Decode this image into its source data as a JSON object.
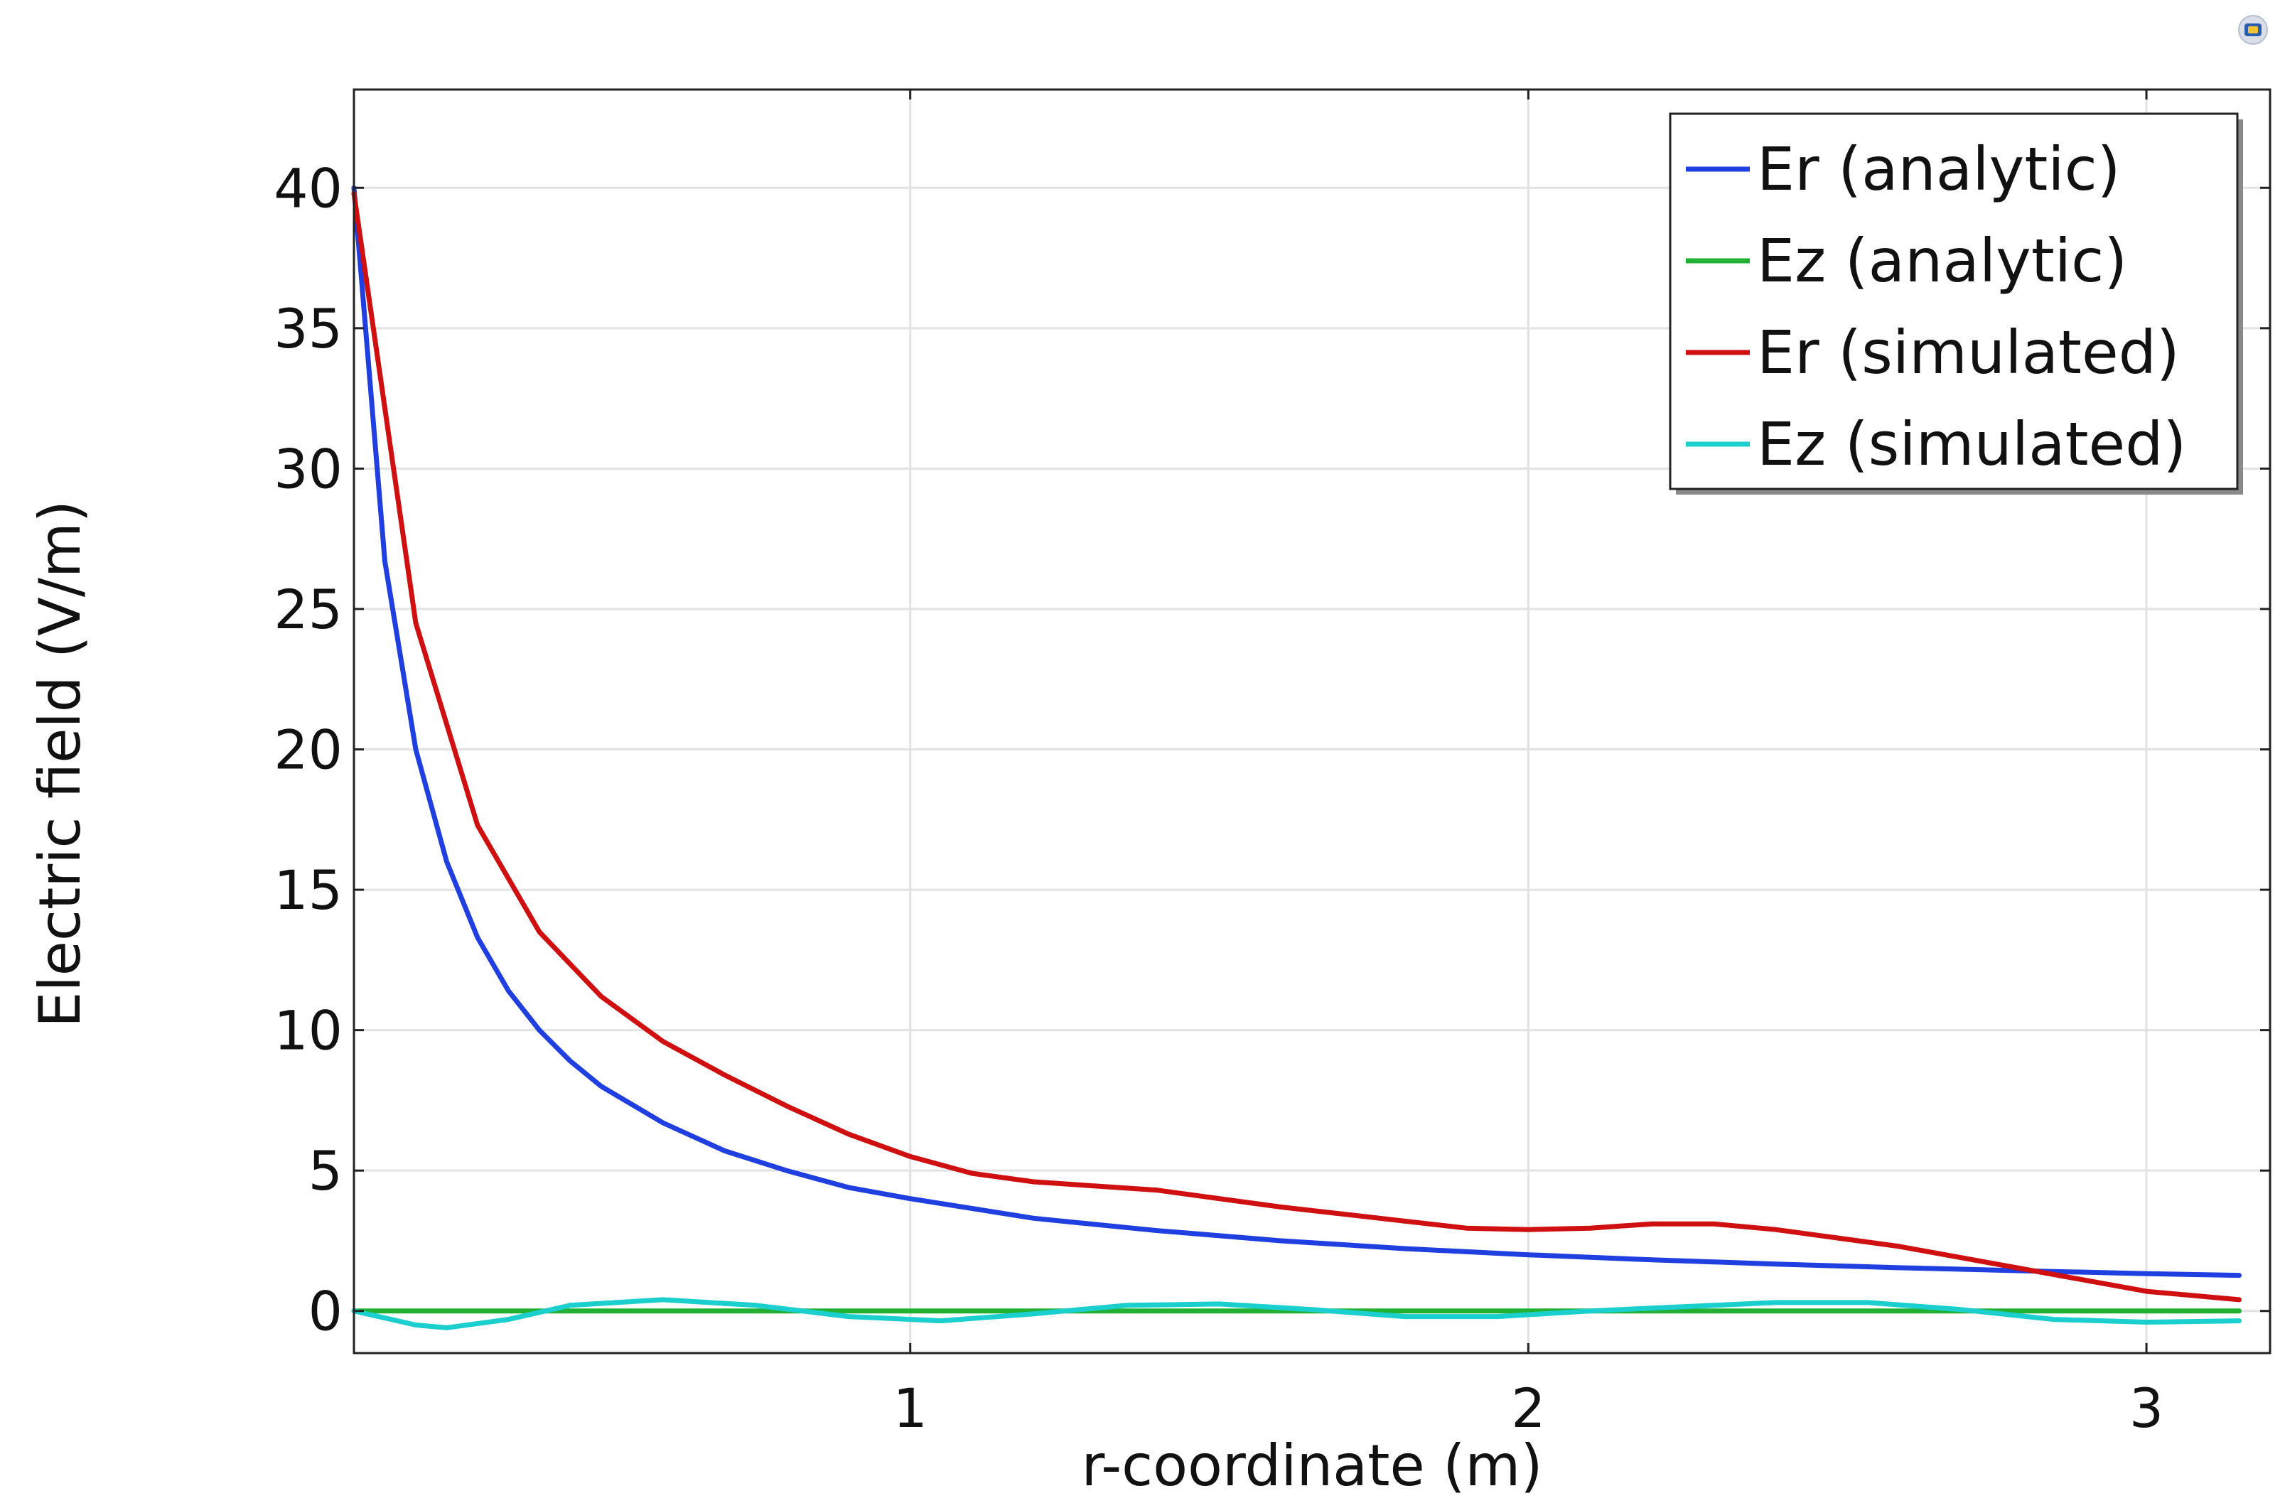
{
  "chart_data": {
    "type": "line",
    "title": "",
    "xlabel": "r-coordinate (m)",
    "ylabel": "Electric field (V/m)",
    "xlim": [
      0.1,
      3.2
    ],
    "ylim": [
      -1.5,
      43.5
    ],
    "xticks": [
      1,
      2,
      3
    ],
    "yticks": [
      0,
      5,
      10,
      15,
      20,
      25,
      30,
      35,
      40
    ],
    "grid": true,
    "legend_position": "top-right",
    "series": [
      {
        "name": "Er (analytic)",
        "color": "#1f3fe0",
        "x": [
          0.1,
          0.15,
          0.2,
          0.25,
          0.3,
          0.35,
          0.4,
          0.45,
          0.5,
          0.6,
          0.7,
          0.8,
          0.9,
          1.0,
          1.2,
          1.4,
          1.6,
          1.8,
          2.0,
          2.2,
          2.4,
          2.6,
          2.8,
          3.0,
          3.15
        ],
        "y": [
          40,
          26.7,
          20,
          16,
          13.3,
          11.4,
          10,
          8.9,
          8,
          6.7,
          5.7,
          5,
          4.4,
          4,
          3.3,
          2.86,
          2.5,
          2.22,
          2,
          1.82,
          1.67,
          1.54,
          1.43,
          1.33,
          1.27
        ]
      },
      {
        "name": "Ez (analytic)",
        "color": "#22b033",
        "x": [
          0.1,
          3.15
        ],
        "y": [
          0,
          0
        ]
      },
      {
        "name": "Er (simulated)",
        "color": "#d01010",
        "x": [
          0.1,
          0.2,
          0.3,
          0.4,
          0.5,
          0.6,
          0.7,
          0.8,
          0.9,
          1.0,
          1.1,
          1.2,
          1.4,
          1.6,
          1.8,
          1.9,
          2.0,
          2.1,
          2.2,
          2.3,
          2.4,
          2.5,
          2.6,
          2.7,
          2.8,
          2.9,
          3.0,
          3.15
        ],
        "y": [
          39.8,
          24.5,
          17.3,
          13.5,
          11.2,
          9.6,
          8.4,
          7.3,
          6.3,
          5.5,
          4.9,
          4.6,
          4.3,
          3.7,
          3.2,
          2.95,
          2.9,
          2.95,
          3.1,
          3.1,
          2.9,
          2.6,
          2.3,
          1.9,
          1.5,
          1.1,
          0.7,
          0.4
        ]
      },
      {
        "name": "Ez (simulated)",
        "color": "#1ccfcf",
        "x": [
          0.1,
          0.2,
          0.25,
          0.35,
          0.45,
          0.6,
          0.75,
          0.9,
          1.05,
          1.2,
          1.35,
          1.5,
          1.65,
          1.8,
          1.95,
          2.1,
          2.25,
          2.4,
          2.55,
          2.7,
          2.85,
          3.0,
          3.15
        ],
        "y": [
          0,
          -0.5,
          -0.6,
          -0.3,
          0.2,
          0.4,
          0.2,
          -0.2,
          -0.35,
          -0.1,
          0.2,
          0.25,
          0.05,
          -0.2,
          -0.2,
          0.0,
          0.15,
          0.3,
          0.3,
          0.05,
          -0.3,
          -0.4,
          -0.35
        ]
      }
    ]
  }
}
